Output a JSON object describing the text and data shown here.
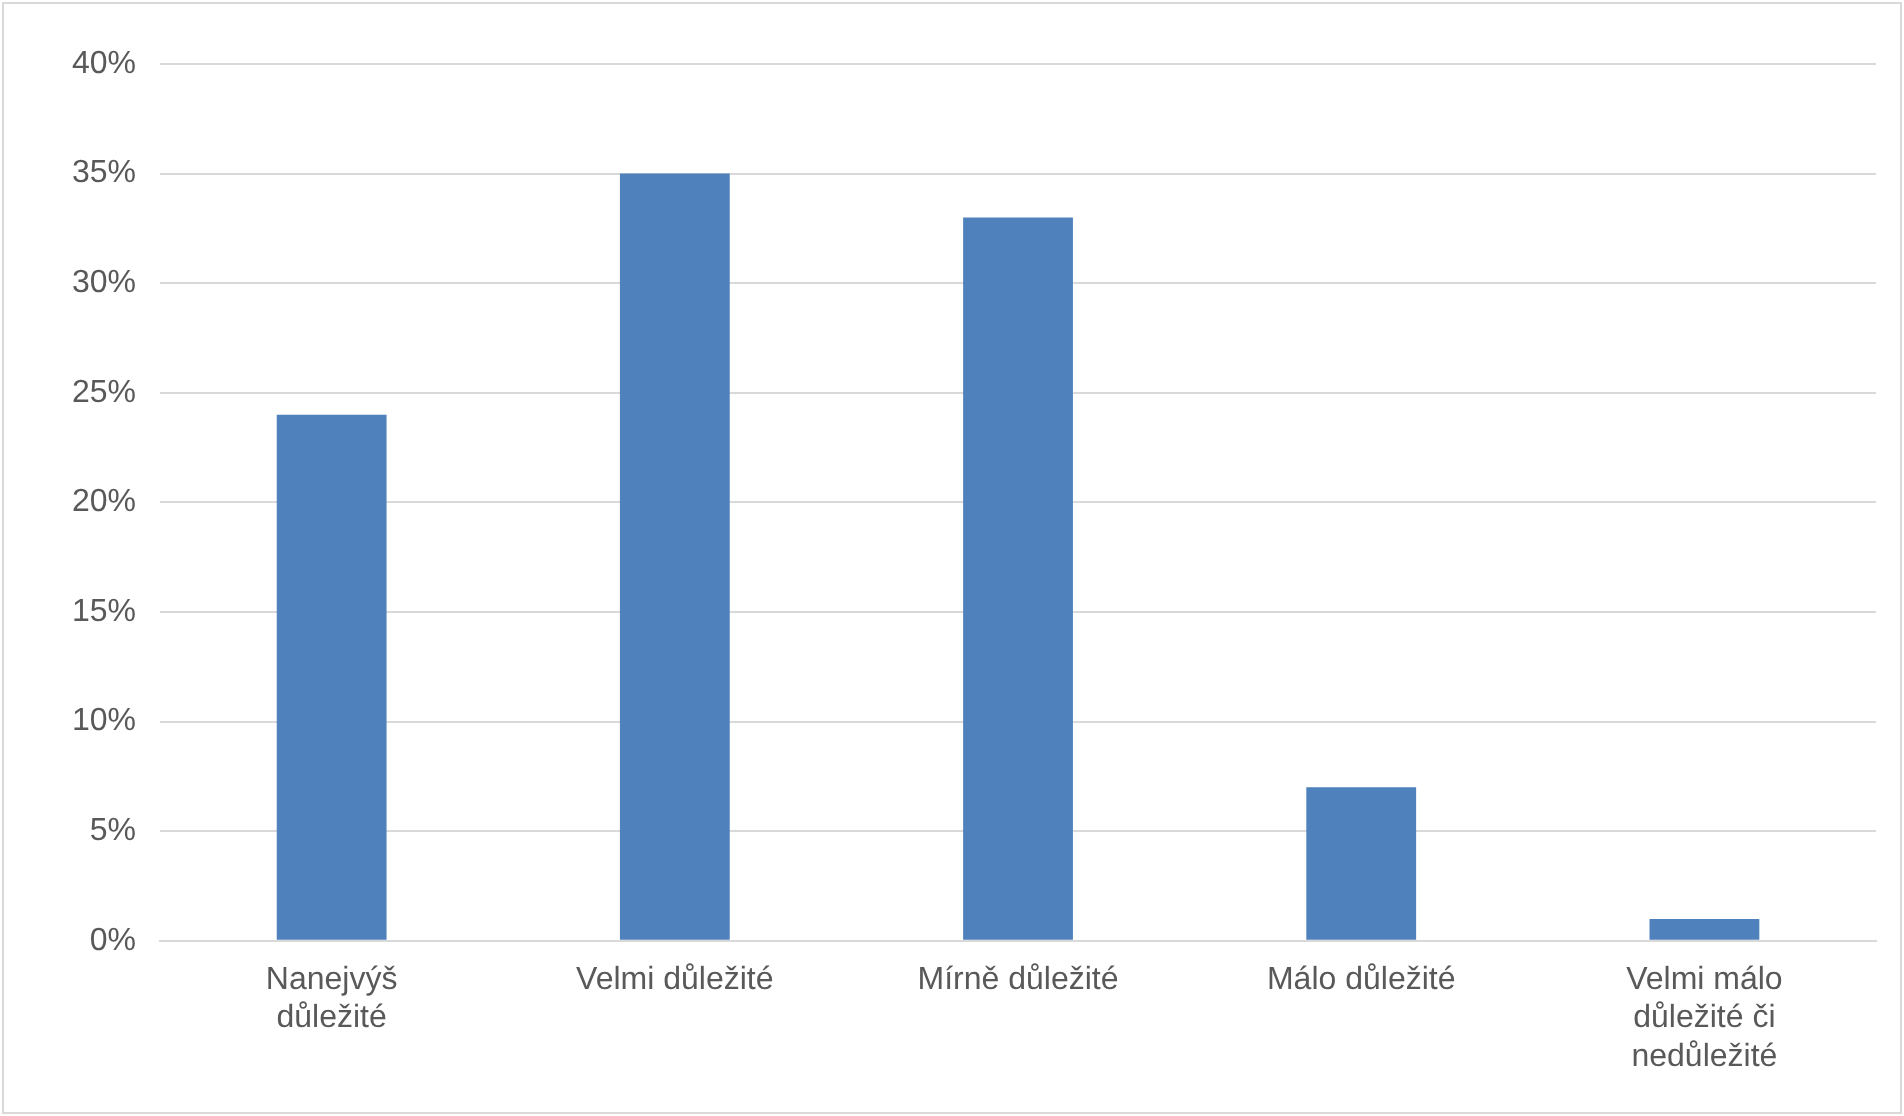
{
  "chart_data": {
    "type": "bar",
    "categories": [
      "Nanejvýš důležité",
      "Velmi důležité",
      "Mírně důležité",
      "Málo důležité",
      "Velmi málo důležité či nedůležité"
    ],
    "values": [
      24,
      35,
      33,
      7,
      1
    ],
    "color": "#4f81bd",
    "ylim": [
      0,
      40
    ],
    "yticks": [
      {
        "value": 0,
        "label": "0%"
      },
      {
        "value": 5,
        "label": "5%"
      },
      {
        "value": 10,
        "label": "10%"
      },
      {
        "value": 15,
        "label": "15%"
      },
      {
        "value": 20,
        "label": "20%"
      },
      {
        "value": 25,
        "label": "25%"
      },
      {
        "value": 30,
        "label": "30%"
      },
      {
        "value": 35,
        "label": "35%"
      },
      {
        "value": 40,
        "label": "40%"
      }
    ],
    "grid": "y",
    "legend": false
  }
}
